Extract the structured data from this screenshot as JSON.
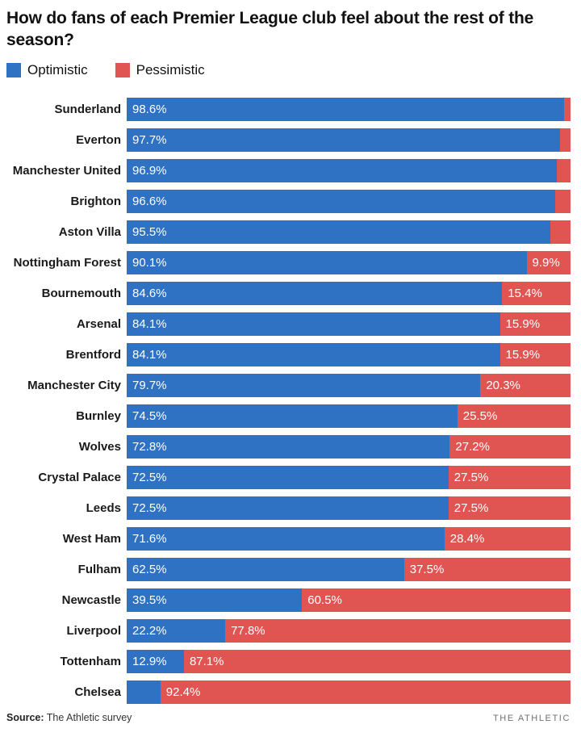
{
  "title": "How do fans of each Premier League club feel about the rest of the season?",
  "legend": {
    "optimistic_label": "Optimistic",
    "pessimistic_label": "Pessimistic"
  },
  "colors": {
    "optimistic": "#2f72c4",
    "pessimistic": "#e05452",
    "value_label": "#ffffff"
  },
  "footer": {
    "source_label": "Source:",
    "source_text": " The Athletic survey",
    "brand": "THE ATHLETIC"
  },
  "chart_data": {
    "type": "bar",
    "orientation": "horizontal",
    "stacked": true,
    "title": "How do fans of each Premier League club feel about the rest of the season?",
    "xlabel": "",
    "ylabel": "",
    "xlim": [
      0,
      100
    ],
    "grid": false,
    "legend_position": "top-left",
    "categories": [
      "Sunderland",
      "Everton",
      "Manchester United",
      "Brighton",
      "Aston Villa",
      "Nottingham Forest",
      "Bournemouth",
      "Arsenal",
      "Brentford",
      "Manchester City",
      "Burnley",
      "Wolves",
      "Crystal Palace",
      "Leeds",
      "West Ham",
      "Fulham",
      "Newcastle",
      "Liverpool",
      "Tottenham",
      "Chelsea"
    ],
    "series": [
      {
        "name": "Optimistic",
        "color": "#2f72c4",
        "values": [
          98.6,
          97.7,
          96.9,
          96.6,
          95.5,
          90.1,
          84.6,
          84.1,
          84.1,
          79.7,
          74.5,
          72.8,
          72.5,
          72.5,
          71.6,
          62.5,
          39.5,
          22.2,
          12.9,
          7.6
        ]
      },
      {
        "name": "Pessimistic",
        "color": "#e05452",
        "values": [
          1.4,
          2.3,
          3.1,
          3.4,
          4.5,
          9.9,
          15.4,
          15.9,
          15.9,
          20.3,
          25.5,
          27.2,
          27.5,
          27.5,
          28.4,
          37.5,
          60.5,
          77.8,
          87.1,
          92.4
        ]
      }
    ],
    "bar_labels": {
      "optimistic": [
        "98.6%",
        "97.7%",
        "96.9%",
        "96.6%",
        "95.5%",
        "90.1%",
        "84.6%",
        "84.1%",
        "84.1%",
        "79.7%",
        "74.5%",
        "72.8%",
        "72.5%",
        "72.5%",
        "71.6%",
        "62.5%",
        "39.5%",
        "22.2%",
        "12.9%",
        ""
      ],
      "pessimistic": [
        "",
        "",
        "",
        "",
        "",
        "9.9%",
        "15.4%",
        "15.9%",
        "15.9%",
        "20.3%",
        "25.5%",
        "27.2%",
        "27.5%",
        "27.5%",
        "28.4%",
        "37.5%",
        "60.5%",
        "77.8%",
        "87.1%",
        "92.4%"
      ]
    }
  }
}
